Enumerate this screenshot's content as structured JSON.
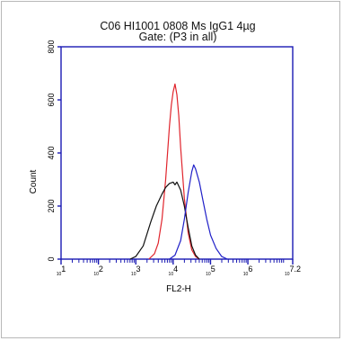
{
  "chart_data": {
    "type": "line",
    "title": "C06 HI1001 0808 Ms IgG1 4µg",
    "subtitle": "Gate: (P3 in all)",
    "xlabel": "FL2-H",
    "ylabel": "Count",
    "x_scale": "log",
    "xlim": [
      1,
      7.2
    ],
    "ylim": [
      0,
      800
    ],
    "x_ticks": [
      {
        "base": "10",
        "exp": "1",
        "value": 1
      },
      {
        "base": "10",
        "exp": "2",
        "value": 2
      },
      {
        "base": "10",
        "exp": "3",
        "value": 3
      },
      {
        "base": "10",
        "exp": "4",
        "value": 4
      },
      {
        "base": "10",
        "exp": "5",
        "value": 5
      },
      {
        "base": "10",
        "exp": "6",
        "value": 6
      },
      {
        "base": "10",
        "exp": "7.2",
        "value": 7.2
      }
    ],
    "y_ticks": [
      "0",
      "200",
      "400",
      "600",
      "800"
    ],
    "y_tick_values": [
      0,
      200,
      400,
      600,
      800
    ],
    "grid": false,
    "colors": {
      "axis": "#1a1ab4",
      "series_red": "#e0242c",
      "series_black": "#111111",
      "series_blue": "#2020c8"
    },
    "series": [
      {
        "color": "red",
        "x": [
          3.35,
          3.5,
          3.6,
          3.7,
          3.8,
          3.9,
          3.95,
          4.0,
          4.05,
          4.1,
          4.15,
          4.2,
          4.3,
          4.4,
          4.5,
          4.6,
          4.7
        ],
        "y": [
          0,
          20,
          60,
          150,
          300,
          500,
          580,
          630,
          660,
          620,
          540,
          420,
          230,
          100,
          35,
          10,
          0
        ]
      },
      {
        "color": "black",
        "x": [
          2.85,
          3.0,
          3.2,
          3.4,
          3.55,
          3.7,
          3.8,
          3.9,
          4.0,
          4.05,
          4.1,
          4.2,
          4.3,
          4.4,
          4.5,
          4.6,
          4.7
        ],
        "y": [
          0,
          10,
          50,
          140,
          200,
          245,
          270,
          285,
          290,
          280,
          290,
          260,
          200,
          120,
          50,
          15,
          0
        ]
      },
      {
        "color": "blue",
        "x": [
          3.9,
          4.05,
          4.2,
          4.3,
          4.4,
          4.5,
          4.55,
          4.6,
          4.7,
          4.8,
          4.9,
          5.0,
          5.15,
          5.3,
          5.45
        ],
        "y": [
          0,
          15,
          70,
          150,
          250,
          330,
          355,
          340,
          290,
          220,
          150,
          90,
          40,
          10,
          0
        ]
      }
    ]
  }
}
